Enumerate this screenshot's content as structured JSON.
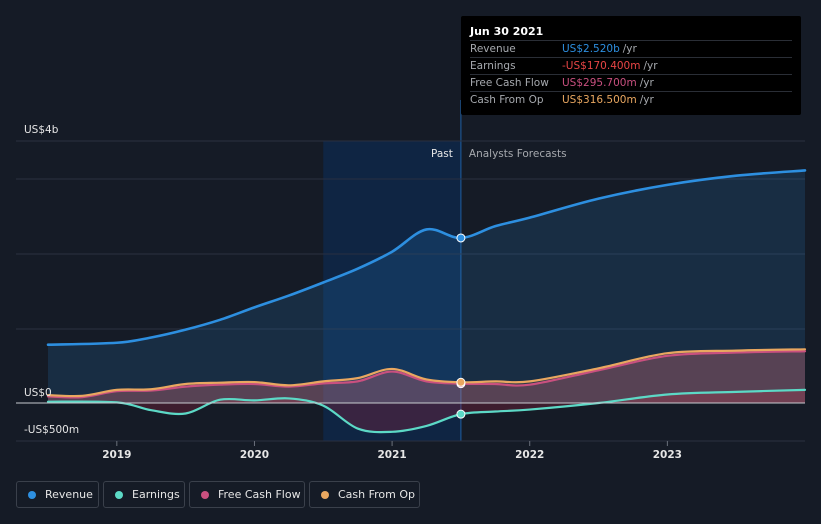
{
  "colors": {
    "revenue": "#2d8fe0",
    "earnings": "#5cd9c6",
    "fcf": "#c9507f",
    "cfo": "#e9a760"
  },
  "labels": {
    "past": "Past",
    "forecast": "Analysts Forecasts"
  },
  "tooltip": {
    "date": "Jun 30 2021",
    "rows": [
      {
        "label": "Revenue",
        "value": "US$2.520b",
        "unit": "/yr",
        "color": "#2d8fe0"
      },
      {
        "label": "Earnings",
        "value": "-US$170.400m",
        "unit": "/yr",
        "color": "#e84545"
      },
      {
        "label": "Free Cash Flow",
        "value": "US$295.700m",
        "unit": "/yr",
        "color": "#c9507f"
      },
      {
        "label": "Cash From Op",
        "value": "US$316.500m",
        "unit": "/yr",
        "color": "#e9a760"
      }
    ]
  },
  "legend": [
    {
      "label": "Revenue",
      "color": "#2d8fe0"
    },
    {
      "label": "Earnings",
      "color": "#5cd9c6"
    },
    {
      "label": "Free Cash Flow",
      "color": "#c9507f"
    },
    {
      "label": "Cash From Op",
      "color": "#e9a760"
    }
  ],
  "chart_data": {
    "type": "line",
    "title": "",
    "xlabel": "",
    "ylabel": "",
    "y_tick_labels": [
      "US$4b",
      "US$0",
      "-US$500m"
    ],
    "x_tick_labels": [
      "2019",
      "2020",
      "2021",
      "2022",
      "2023"
    ],
    "x_ticks": [
      2019,
      2020,
      2021,
      2022,
      2023
    ],
    "xlim": [
      2018.5,
      2024.0
    ],
    "ylim": [
      -500,
      4000
    ],
    "past_range": [
      2020.5,
      2021.5
    ],
    "divider_x": 2021.5,
    "series": [
      {
        "name": "Revenue",
        "x": [
          2018.5,
          2019.0,
          2019.25,
          2019.5,
          2019.75,
          2020.0,
          2020.25,
          2020.5,
          2020.75,
          2021.0,
          2021.25,
          2021.5,
          2021.75,
          2022.0,
          2022.5,
          2023.0,
          2023.5,
          2024.0
        ],
        "values": [
          890,
          920,
          1000,
          1120,
          1270,
          1460,
          1640,
          1840,
          2050,
          2310,
          2650,
          2520,
          2700,
          2830,
          3120,
          3330,
          3470,
          3550
        ]
      },
      {
        "name": "Earnings",
        "x": [
          2018.5,
          2019.0,
          2019.25,
          2019.5,
          2019.75,
          2020.0,
          2020.25,
          2020.5,
          2020.75,
          2021.0,
          2021.25,
          2021.5,
          2021.75,
          2022.0,
          2022.5,
          2023.0,
          2023.5,
          2024.0
        ],
        "values": [
          20,
          10,
          -110,
          -160,
          50,
          40,
          70,
          -40,
          -390,
          -440,
          -350,
          -170,
          -130,
          -100,
          0,
          130,
          170,
          200
        ]
      },
      {
        "name": "Free Cash Flow",
        "x": [
          2018.5,
          2018.75,
          2019.0,
          2019.25,
          2019.5,
          2019.75,
          2020.0,
          2020.25,
          2020.5,
          2020.75,
          2021.0,
          2021.25,
          2021.5,
          2021.75,
          2022.0,
          2022.5,
          2023.0,
          2023.5,
          2024.0
        ],
        "values": [
          100,
          90,
          180,
          190,
          250,
          280,
          290,
          250,
          300,
          330,
          480,
          330,
          295.7,
          290,
          280,
          500,
          720,
          770,
          790
        ]
      },
      {
        "name": "Cash From Op",
        "x": [
          2018.5,
          2018.75,
          2019.0,
          2019.25,
          2019.5,
          2019.75,
          2020.0,
          2020.25,
          2020.5,
          2020.75,
          2021.0,
          2021.25,
          2021.5,
          2021.75,
          2022.0,
          2022.5,
          2023.0,
          2023.5,
          2024.0
        ],
        "values": [
          120,
          110,
          200,
          210,
          290,
          310,
          320,
          270,
          330,
          380,
          520,
          360,
          316.5,
          330,
          330,
          530,
          760,
          800,
          820
        ]
      }
    ],
    "highlight_x": 2021.5
  }
}
